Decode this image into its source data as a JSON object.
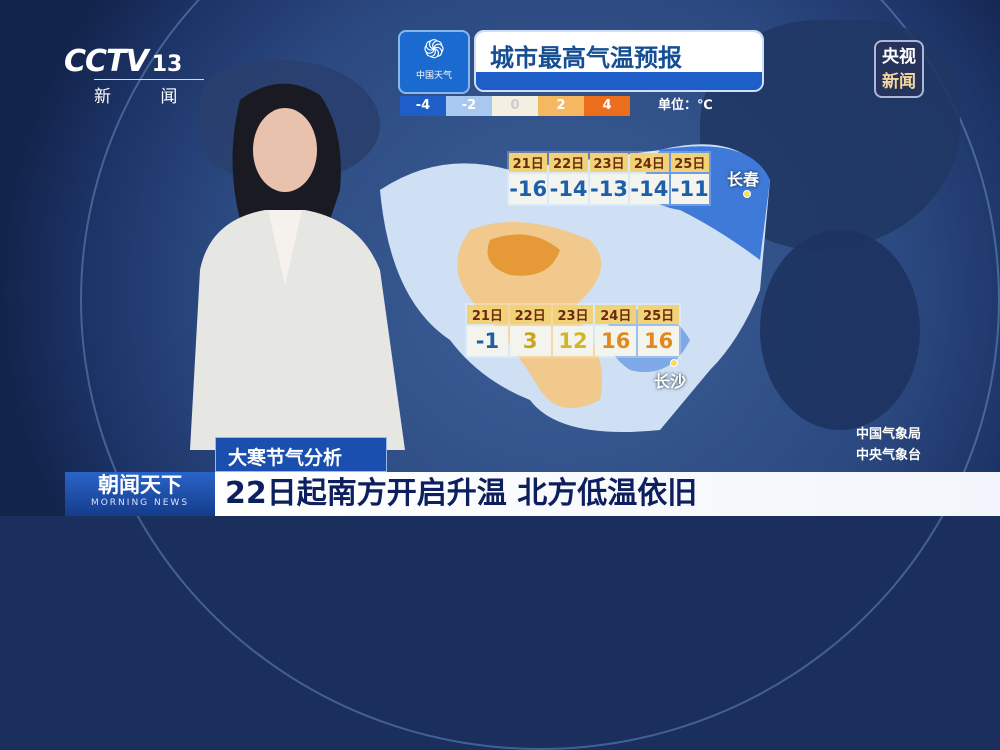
{
  "channel": {
    "logo": "CCTV",
    "number": "13",
    "name": "新 闻"
  },
  "corner_badge": {
    "line1": "央视",
    "line2": "新闻"
  },
  "weather_brand": {
    "icon": "swirl-logo-icon",
    "name": "中国天气"
  },
  "title": "城市最高气温预报",
  "legend": {
    "stops": [
      {
        "label": "-4",
        "color": "#1d5ec9"
      },
      {
        "label": "-2",
        "color": "#a9c8f0"
      },
      {
        "label": "0",
        "color": "#f3f0e2"
      },
      {
        "label": "2",
        "color": "#f3b860"
      },
      {
        "label": "4",
        "color": "#ec6d1c"
      }
    ],
    "unit": "单位：℃"
  },
  "forecasts": [
    {
      "city": "长春",
      "days": [
        "21日",
        "22日",
        "23日",
        "24日",
        "25日"
      ],
      "temps": [
        "-16",
        "-14",
        "-13",
        "-14",
        "-11"
      ]
    },
    {
      "city": "长沙",
      "days": [
        "21日",
        "22日",
        "23日",
        "24日",
        "25日"
      ],
      "temps": [
        "-1",
        "3",
        "12",
        "16",
        "16"
      ]
    }
  ],
  "credits": {
    "line1": "中国气象局",
    "line2": "中央气象台"
  },
  "tag": "大寒节气分析",
  "program": {
    "name": "朝闻天下",
    "english": "MORNING NEWS"
  },
  "headline": "22日起南方开启升温 北方低温依旧"
}
